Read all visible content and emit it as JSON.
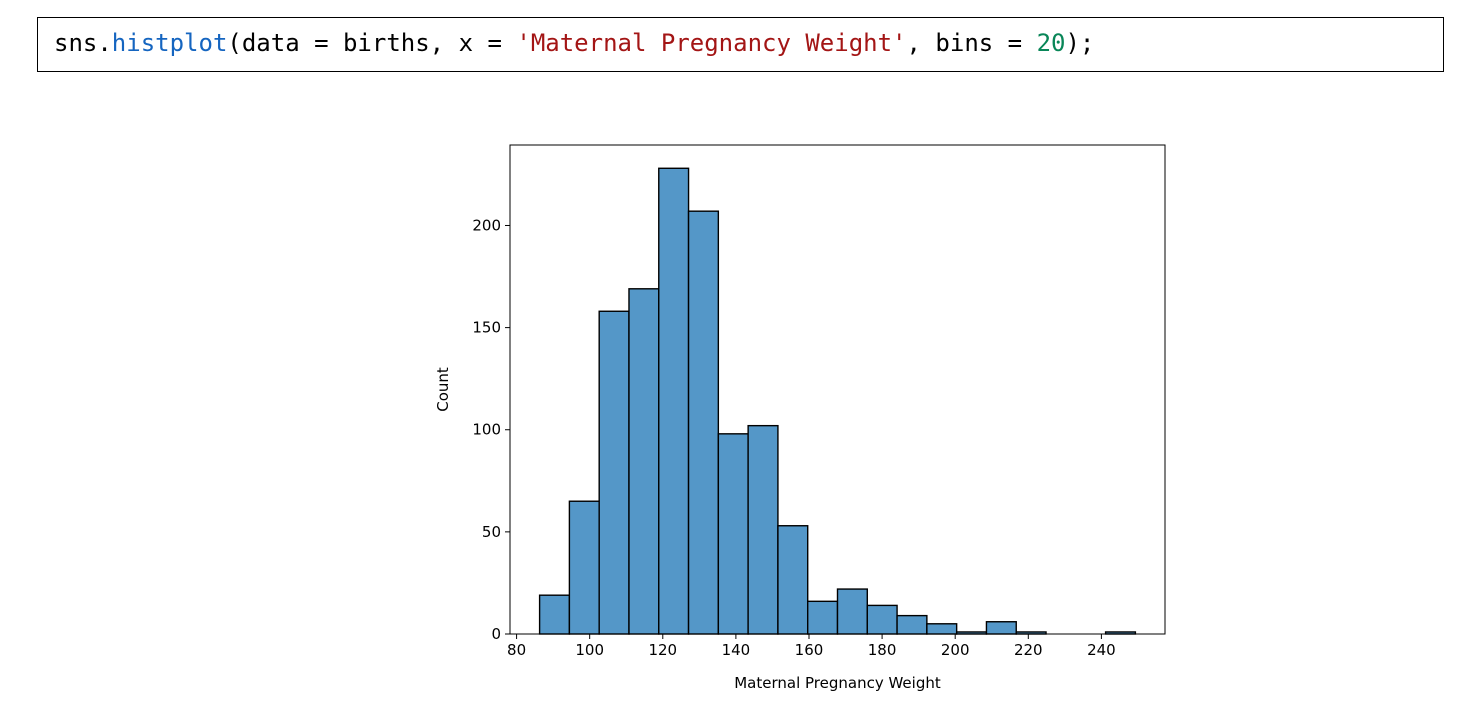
{
  "code": {
    "prefix": "sns.",
    "function": "histplot",
    "args_before_string": "(data = births, x = ",
    "string_arg": "'Maternal Pregnancy Weight'",
    "args_middle": ", bins = ",
    "number_arg": "20",
    "suffix": ");"
  },
  "colors": {
    "bar_fill": "#5497c8",
    "bar_edge": "#000000",
    "function_token": "#1565c0",
    "string_token": "#a31515",
    "number_token": "#098658"
  },
  "chart_data": {
    "type": "bar",
    "histogram": true,
    "bin_edges": [
      86.3,
      94.45,
      102.6,
      110.75,
      118.9,
      127.05,
      135.2,
      143.35,
      151.5,
      159.65,
      167.8,
      175.95,
      184.1,
      192.25,
      200.4,
      208.55,
      216.7,
      224.85,
      233.0,
      241.15,
      249.3
    ],
    "values": [
      19,
      65,
      158,
      169,
      228,
      207,
      98,
      102,
      53,
      16,
      22,
      14,
      9,
      5,
      1,
      6,
      1,
      0,
      0,
      1
    ],
    "xlabel": "Maternal Pregnancy Weight",
    "ylabel": "Count",
    "xlim": [
      78.2,
      257.4
    ],
    "ylim": [
      0,
      239.4
    ],
    "xticks": [
      80,
      100,
      120,
      140,
      160,
      180,
      200,
      220,
      240
    ],
    "yticks": [
      0,
      50,
      100,
      150,
      200
    ],
    "grid": false
  }
}
